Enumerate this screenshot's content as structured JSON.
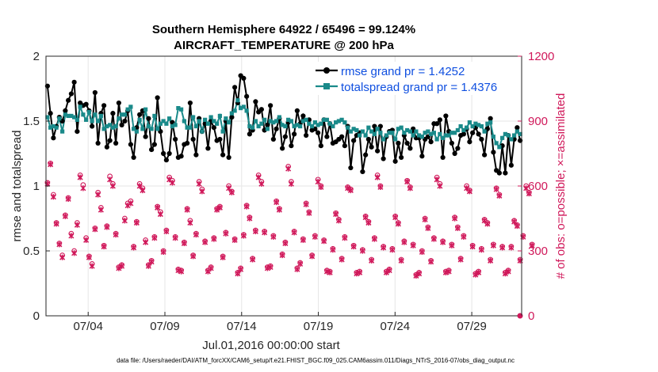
{
  "chart_data": {
    "type": "line",
    "title_line1": "Southern Hemisphere 64922 / 65496 = 99.124%",
    "title_line2": "AIRCRAFT_TEMPERATURE @ 200 hPa",
    "xlabel": "Jul.01,2016 00:00:00 start",
    "ylabel_left": "rmse and totalspread",
    "ylabel_right": "# of obs: o=possible; ×=assimilated",
    "footer": "data file: /Users/raeder/DAI/ATM_forcXX/CAM6_setup/f.e21.FHIST_BGC.f09_025.CAM6assim.011/Diags_NTrS_2016-07/obs_diag_output.nc",
    "x_range": [
      1.25,
      32.25
    ],
    "x_ticks": [
      {
        "x": 4,
        "label": "07/04"
      },
      {
        "x": 9,
        "label": "07/09"
      },
      {
        "x": 14,
        "label": "07/14"
      },
      {
        "x": 19,
        "label": "07/19"
      },
      {
        "x": 24,
        "label": "07/24"
      },
      {
        "x": 29,
        "label": "07/29"
      }
    ],
    "ylim_left": [
      0,
      2
    ],
    "yticks_left": [
      "0",
      "0.5",
      "1",
      "1.5",
      "2"
    ],
    "ylim_right": [
      0,
      1200
    ],
    "yticks_right": [
      "0",
      "300",
      "600",
      "900",
      "1200"
    ],
    "colors": {
      "rmse": "#000000",
      "spread": "#1a8a8a",
      "obs": "#d0185a",
      "legend_text": "#0f4fe0"
    },
    "series": [
      {
        "name": "rmse grand pr = 1.4252",
        "values": [
          1.77,
          1.56,
          1.37,
          1.46,
          1.53,
          1.5,
          1.58,
          1.66,
          1.71,
          1.8,
          1.42,
          1.64,
          1.62,
          1.63,
          1.58,
          1.46,
          1.72,
          1.33,
          1.56,
          1.62,
          1.3,
          1.35,
          1.56,
          1.33,
          1.64,
          1.47,
          1.5,
          1.58,
          1.32,
          1.22,
          1.45,
          1.55,
          1.58,
          1.38,
          1.52,
          1.28,
          1.32,
          1.68,
          1.42,
          1.25,
          1.2,
          1.25,
          1.49,
          1.36,
          1.22,
          1.23,
          1.32,
          1.33,
          1.64,
          1.36,
          1.24,
          1.52,
          1.42,
          1.48,
          1.29,
          1.5,
          1.45,
          1.35,
          1.36,
          1.24,
          1.5,
          1.22,
          1.53,
          1.76,
          1.64,
          1.85,
          1.83,
          1.69,
          1.4,
          1.43,
          1.65,
          1.57,
          1.59,
          1.43,
          1.47,
          1.62,
          1.36,
          1.44,
          1.52,
          1.29,
          1.38,
          1.49,
          1.31,
          1.4,
          1.58,
          1.48,
          1.54,
          1.39,
          1.51,
          1.43,
          1.44,
          1.41,
          1.31,
          1.51,
          1.38,
          1.48,
          1.33,
          1.34,
          1.36,
          1.38,
          1.31,
          1.46,
          1.14,
          1.35,
          1.39,
          1.41,
          1.11,
          1.24,
          1.36,
          1.3,
          1.46,
          1.27,
          1.46,
          1.21,
          1.38,
          1.42,
          1.43,
          1.19,
          1.33,
          1.22,
          1.39,
          1.33,
          1.29,
          1.44,
          1.37,
          1.37,
          1.23,
          1.36,
          1.38,
          1.34,
          1.48,
          1.48,
          1.51,
          1.22,
          1.54,
          1.42,
          1.33,
          1.25,
          1.29,
          1.39,
          1.4,
          1.44,
          1.34,
          1.41,
          1.45,
          1.4,
          1.36,
          1.24,
          1.44,
          1.52,
          1.26,
          1.12,
          1.1,
          1.31,
          1.1,
          1.39,
          1.16,
          1.36,
          1.45,
          1.35
        ]
      },
      {
        "name": "totalspread grand pr = 1.4376",
        "values": [
          1.53,
          1.45,
          1.46,
          1.45,
          1.52,
          1.42,
          1.55,
          1.54,
          1.54,
          1.53,
          1.51,
          1.61,
          1.55,
          1.51,
          1.57,
          1.5,
          1.55,
          1.5,
          1.54,
          1.44,
          1.46,
          1.47,
          1.45,
          1.46,
          1.52,
          1.55,
          1.55,
          1.59,
          1.61,
          1.44,
          1.42,
          1.51,
          1.44,
          1.59,
          1.46,
          1.44,
          1.54,
          1.44,
          1.48,
          1.5,
          1.48,
          1.52,
          1.46,
          1.47,
          1.6,
          1.59,
          1.5,
          1.45,
          1.45,
          1.53,
          1.46,
          1.5,
          1.42,
          1.51,
          1.48,
          1.53,
          1.5,
          1.48,
          1.54,
          1.42,
          1.52,
          1.49,
          1.56,
          1.58,
          1.66,
          1.6,
          1.61,
          1.58,
          1.46,
          1.45,
          1.5,
          1.46,
          1.48,
          1.51,
          1.44,
          1.5,
          1.49,
          1.5,
          1.53,
          1.47,
          1.46,
          1.51,
          1.5,
          1.46,
          1.47,
          1.46,
          1.5,
          1.51,
          1.48,
          1.46,
          1.49,
          1.47,
          1.48,
          1.51,
          1.51,
          1.48,
          1.46,
          1.49,
          1.5,
          1.51,
          1.49,
          1.45,
          1.42,
          1.44,
          1.43,
          1.39,
          1.42,
          1.39,
          1.45,
          1.42,
          1.4,
          1.44,
          1.41,
          1.36,
          1.39,
          1.41,
          1.41,
          1.36,
          1.44,
          1.45,
          1.41,
          1.43,
          1.42,
          1.39,
          1.42,
          1.39,
          1.38,
          1.41,
          1.42,
          1.4,
          1.41,
          1.36,
          1.4,
          1.37,
          1.39,
          1.39,
          1.41,
          1.41,
          1.43,
          1.46,
          1.43,
          1.45,
          1.49,
          1.46,
          1.48,
          1.47,
          1.46,
          1.42,
          1.48,
          1.49,
          1.38,
          1.33,
          1.3,
          1.37,
          1.4,
          1.39,
          1.36,
          1.39,
          1.42,
          1.4
        ]
      }
    ],
    "obs_possible": [
      615,
      705,
      560,
      430,
      335,
      280,
      465,
      545,
      380,
      300,
      430,
      650,
      605,
      360,
      275,
      240,
      405,
      570,
      500,
      325,
      415,
      645,
      610,
      380,
      225,
      235,
      450,
      520,
      530,
      320,
      435,
      610,
      590,
      350,
      235,
      255,
      365,
      505,
      480,
      300,
      395,
      640,
      625,
      365,
      215,
      210,
      340,
      495,
      440,
      280,
      380,
      620,
      585,
      345,
      210,
      225,
      360,
      495,
      505,
      275,
      385,
      600,
      575,
      355,
      200,
      220,
      375,
      510,
      455,
      265,
      395,
      650,
      620,
      390,
      225,
      230,
      370,
      530,
      495,
      285,
      340,
      690,
      620,
      390,
      220,
      245,
      355,
      520,
      480,
      280,
      370,
      630,
      600,
      350,
      210,
      205,
      310,
      475,
      445,
      265,
      365,
      595,
      585,
      325,
      200,
      205,
      305,
      460,
      435,
      260,
      360,
      650,
      600,
      320,
      205,
      215,
      310,
      460,
      430,
      260,
      345,
      625,
      595,
      330,
      190,
      200,
      300,
      450,
      410,
      255,
      360,
      640,
      610,
      345,
      205,
      210,
      330,
      455,
      410,
      265,
      370,
      600,
      580,
      325,
      195,
      205,
      310,
      445,
      430,
      260,
      330,
      590,
      560,
      320,
      200,
      210,
      320,
      440,
      420,
      260,
      370,
      600,
      570,
      330
    ],
    "obs_assimilated": [
      610,
      700,
      550,
      425,
      330,
      270,
      460,
      540,
      370,
      290,
      420,
      640,
      590,
      350,
      270,
      230,
      400,
      560,
      490,
      320,
      410,
      630,
      600,
      375,
      220,
      230,
      440,
      510,
      520,
      315,
      430,
      600,
      580,
      340,
      230,
      250,
      360,
      500,
      470,
      295,
      390,
      630,
      615,
      360,
      210,
      205,
      335,
      490,
      430,
      275,
      375,
      610,
      575,
      340,
      205,
      220,
      355,
      490,
      500,
      270,
      380,
      590,
      570,
      350,
      195,
      215,
      370,
      505,
      450,
      260,
      390,
      640,
      610,
      385,
      220,
      225,
      365,
      525,
      490,
      280,
      335,
      680,
      610,
      385,
      215,
      240,
      350,
      515,
      475,
      275,
      365,
      620,
      595,
      345,
      205,
      200,
      305,
      470,
      440,
      260,
      360,
      590,
      580,
      320,
      195,
      200,
      300,
      455,
      430,
      255,
      355,
      640,
      595,
      315,
      200,
      210,
      305,
      455,
      425,
      255,
      340,
      620,
      590,
      325,
      185,
      195,
      295,
      445,
      405,
      250,
      355,
      630,
      600,
      340,
      200,
      205,
      325,
      450,
      405,
      260,
      365,
      590,
      575,
      320,
      190,
      200,
      305,
      440,
      425,
      255,
      325,
      585,
      555,
      315,
      195,
      205,
      315,
      435,
      415,
      255,
      365,
      590,
      565,
      325
    ]
  }
}
